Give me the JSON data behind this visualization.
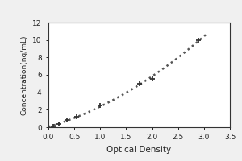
{
  "x_data": [
    0.1,
    0.2,
    0.35,
    0.55,
    1.0,
    1.75,
    2.0,
    2.9
  ],
  "y_data": [
    0.1,
    0.4,
    0.8,
    1.2,
    2.5,
    5.0,
    5.5,
    10.0
  ],
  "xlabel": "Optical Density",
  "ylabel": "Concentration(ng/mL)",
  "xlim": [
    0,
    3.5
  ],
  "ylim": [
    0,
    12
  ],
  "xticks": [
    0,
    0.5,
    1,
    1.5,
    2,
    2.5,
    3,
    3.5
  ],
  "yticks": [
    0,
    2,
    4,
    6,
    8,
    10,
    12
  ],
  "line_color": "#555555",
  "marker": "+",
  "marker_color": "#333333",
  "marker_size": 5,
  "line_style": "dotted",
  "line_width": 1.8,
  "bg_color": "#f0f0f0",
  "plot_bg_color": "#ffffff",
  "xlabel_fontsize": 7.5,
  "ylabel_fontsize": 6.5,
  "tick_fontsize": 6.5
}
